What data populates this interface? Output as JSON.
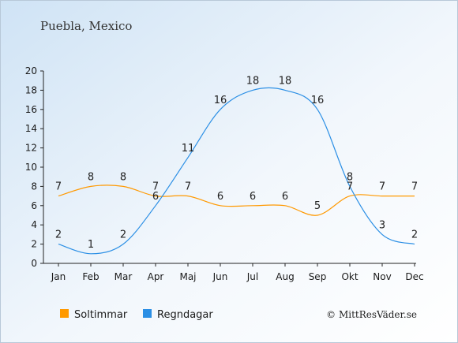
{
  "chart_data": {
    "type": "line",
    "title": "Puebla, Mexico",
    "categories": [
      "Jan",
      "Feb",
      "Mar",
      "Apr",
      "Maj",
      "Jun",
      "Jul",
      "Aug",
      "Sep",
      "Okt",
      "Nov",
      "Dec"
    ],
    "series": [
      {
        "name": "Soltimmar",
        "color": "#ff9900",
        "values": [
          7,
          8,
          8,
          7,
          7,
          6,
          6,
          6,
          5,
          7,
          7,
          7
        ]
      },
      {
        "name": "Regndagar",
        "color": "#2b8fe5",
        "values": [
          2,
          1,
          2,
          6,
          11,
          16,
          18,
          18,
          16,
          8,
          3,
          2
        ]
      }
    ],
    "ylim": [
      0,
      20
    ],
    "yticks": [
      0,
      2,
      4,
      6,
      8,
      10,
      12,
      14,
      16,
      18,
      20
    ],
    "grid": false,
    "legend_position": "bottom-left"
  },
  "copyright": "© MittResVäder.se"
}
